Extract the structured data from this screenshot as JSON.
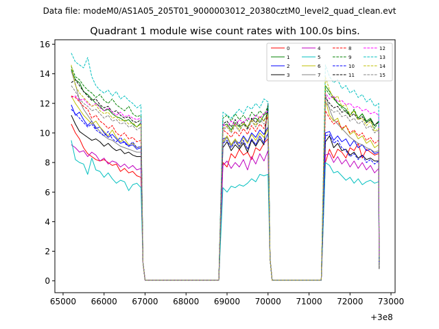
{
  "chart_data": {
    "type": "line",
    "suptitle": "Data file: modeM0/AS1A05_205T01_9000003012_20380cztM0_level2_quad_clean.evt",
    "title": "Quadrant 1 module wise count rates with 100.0s bins.",
    "xlabel": "",
    "ylabel": "",
    "x_offset_label": "+3e8",
    "xlim": [
      64800,
      73100
    ],
    "ylim": [
      -0.8,
      16.3
    ],
    "xticks": [
      65000,
      66000,
      67000,
      68000,
      69000,
      70000,
      71000,
      72000,
      73000
    ],
    "xtick_labels": [
      "65000",
      "66000",
      "67000",
      "68000",
      "69000",
      "70000",
      "71000",
      "72000",
      "73000"
    ],
    "yticks": [
      0,
      2,
      4,
      6,
      8,
      10,
      12,
      14,
      16
    ],
    "ytick_labels": [
      "0",
      "2",
      "4",
      "6",
      "8",
      "10",
      "12",
      "14",
      "16"
    ],
    "x_segments": [
      {
        "start": 65200,
        "end": 66900,
        "step": 100
      },
      {
        "start": 67000,
        "end": 68800,
        "step": 100
      },
      {
        "start": 68900,
        "end": 70000,
        "step": 100
      },
      {
        "start": 70100,
        "end": 71300,
        "step": 100
      },
      {
        "start": 71400,
        "end": 72700,
        "step": 100
      }
    ],
    "legend_position": "upper-right",
    "series": [
      {
        "name": "0",
        "color": "#ff0000",
        "dash": "solid",
        "seg1": [
          10.6,
          10.0,
          9.6,
          9.0,
          8.6,
          8.4,
          8.2,
          8.1,
          8.2,
          8.0,
          7.8,
          7.9,
          7.4,
          7.6,
          7.3,
          7.4,
          7.1,
          7.0
        ],
        "seg3": [
          8.0,
          7.7,
          8.6,
          8.3,
          8.9,
          8.5,
          8.7,
          8.2,
          9.0,
          8.8,
          9.3,
          9.6
        ],
        "seg5": [
          8.0,
          8.9,
          8.3,
          8.9,
          8.7,
          8.3,
          9.0,
          8.8,
          9.3,
          8.3,
          8.9,
          8.7,
          8.5,
          8.6
        ]
      },
      {
        "name": "1",
        "color": "#008000",
        "dash": "solid",
        "seg1": [
          14.3,
          13.6,
          13.4,
          12.8,
          12.6,
          12.3,
          12.0,
          11.8,
          11.5,
          11.6,
          11.3,
          11.1,
          11.0,
          10.8,
          10.9,
          10.6,
          10.4,
          10.7
        ],
        "seg3": [
          10.5,
          10.6,
          10.2,
          10.7,
          10.4,
          10.6,
          10.4,
          10.9,
          11.0,
          10.7,
          11.2,
          11.4
        ],
        "seg5": [
          13.2,
          12.8,
          12.4,
          12.0,
          11.8,
          11.6,
          11.2,
          11.5,
          11.0,
          11.3,
          10.8,
          11.0,
          10.5,
          10.8
        ]
      },
      {
        "name": "2",
        "color": "#0000ff",
        "dash": "solid",
        "seg1": [
          11.9,
          11.2,
          11.4,
          10.9,
          10.5,
          10.8,
          10.3,
          10.4,
          10.0,
          9.7,
          9.9,
          9.6,
          9.3,
          9.4,
          9.1,
          9.2,
          8.9,
          9.0
        ],
        "seg3": [
          9.6,
          9.7,
          9.2,
          9.5,
          9.3,
          9.8,
          9.4,
          10.0,
          9.7,
          10.2,
          9.9,
          10.4
        ],
        "seg5": [
          10.0,
          10.1,
          9.5,
          9.8,
          9.4,
          9.6,
          9.1,
          9.5,
          9.0,
          9.2,
          8.8,
          8.9,
          8.6,
          8.7
        ]
      },
      {
        "name": "3",
        "color": "#000000",
        "dash": "solid",
        "seg1": [
          11.2,
          10.6,
          10.1,
          9.9,
          9.7,
          9.5,
          9.6,
          9.4,
          9.1,
          9.3,
          9.0,
          8.8,
          8.9,
          8.6,
          8.7,
          8.5,
          8.4,
          8.4
        ],
        "seg3": [
          9.0,
          9.4,
          8.8,
          9.2,
          8.9,
          9.3,
          8.7,
          9.5,
          9.1,
          9.6,
          9.2,
          12.0
        ],
        "seg5": [
          9.4,
          9.8,
          9.0,
          9.3,
          8.8,
          8.9,
          8.5,
          8.7,
          8.3,
          8.5,
          8.2,
          8.3,
          8.1,
          8.1
        ]
      },
      {
        "name": "4",
        "color": "#bf00bf",
        "dash": "solid",
        "seg1": [
          9.2,
          9.0,
          8.7,
          8.8,
          8.4,
          8.7,
          8.5,
          8.1,
          8.3,
          7.9,
          8.1,
          8.0,
          7.7,
          7.9,
          7.6,
          7.8,
          7.5,
          7.6
        ],
        "seg3": [
          7.8,
          8.1,
          7.6,
          8.0,
          7.7,
          8.2,
          7.5,
          8.4,
          7.9,
          8.6,
          8.1,
          8.8
        ],
        "seg5": [
          8.5,
          8.6,
          8.0,
          8.4,
          7.9,
          8.2,
          7.7,
          8.1,
          7.6,
          8.0,
          7.5,
          7.8,
          7.3,
          7.6
        ]
      },
      {
        "name": "5",
        "color": "#00bfbf",
        "dash": "solid",
        "seg1": [
          9.5,
          8.2,
          8.0,
          7.9,
          7.2,
          8.3,
          7.5,
          7.4,
          7.0,
          7.3,
          6.9,
          6.6,
          6.8,
          6.7,
          6.1,
          6.5,
          6.6,
          6.3
        ],
        "seg3": [
          6.3,
          6.0,
          6.4,
          6.3,
          6.5,
          6.4,
          6.6,
          6.9,
          6.7,
          7.2,
          7.1,
          7.2
        ],
        "seg5": [
          8.0,
          7.8,
          7.3,
          7.4,
          7.1,
          6.8,
          7.0,
          6.6,
          6.9,
          6.5,
          6.7,
          6.8,
          6.6,
          6.7
        ]
      },
      {
        "name": "6",
        "color": "#bfbf00",
        "dash": "solid",
        "seg1": [
          12.5,
          12.0,
          11.6,
          11.2,
          10.9,
          10.6,
          10.8,
          10.4,
          10.1,
          9.8,
          10.2,
          9.7,
          9.4,
          9.6,
          9.2,
          9.3,
          9.0,
          9.1
        ],
        "seg3": [
          9.4,
          9.8,
          9.2,
          9.6,
          9.1,
          9.7,
          9.3,
          9.9,
          9.5,
          10.0,
          9.7,
          10.3
        ],
        "seg5": [
          12.2,
          11.2,
          10.8,
          11.0,
          10.2,
          10.5,
          9.9,
          10.1,
          9.6,
          9.8,
          9.3,
          9.5,
          9.0,
          9.2
        ]
      },
      {
        "name": "7",
        "color": "#808080",
        "dash": "solid",
        "seg1": [
          14.2,
          13.3,
          12.2,
          11.6,
          11.2,
          10.8,
          10.4,
          10.1,
          9.8,
          9.6,
          9.5,
          9.3,
          9.1,
          9.0,
          8.9,
          8.8,
          8.7,
          8.7
        ],
        "seg3": [
          9.3,
          9.7,
          9.1,
          9.5,
          9.0,
          9.4,
          8.9,
          9.6,
          9.2,
          9.8,
          9.3,
          10.0
        ],
        "seg5": [
          12.6,
          11.6,
          10.9,
          10.6,
          10.3,
          10.0,
          9.7,
          9.5,
          9.3,
          9.2,
          9.0,
          8.9,
          8.7,
          8.8
        ]
      },
      {
        "name": "8",
        "color": "#ff0000",
        "dash": "dashed",
        "seg1": [
          12.5,
          12.4,
          12.1,
          11.8,
          11.6,
          11.0,
          11.2,
          10.8,
          10.6,
          10.3,
          10.5,
          10.0,
          9.8,
          10.0,
          9.6,
          9.7,
          9.4,
          9.5
        ],
        "seg3": [
          10.2,
          10.0,
          9.7,
          10.1,
          9.8,
          10.3,
          9.9,
          10.5,
          10.1,
          10.6,
          10.3,
          11.2
        ],
        "seg5": [
          11.5,
          11.0,
          10.6,
          10.8,
          10.3,
          10.5,
          10.0,
          10.2,
          9.8,
          10.0,
          9.5,
          9.7,
          9.3,
          9.5
        ]
      },
      {
        "name": "9",
        "color": "#008000",
        "dash": "dashed",
        "seg1": [
          14.5,
          13.8,
          13.6,
          13.2,
          12.9,
          12.7,
          12.4,
          12.6,
          12.2,
          12.0,
          12.3,
          11.9,
          11.7,
          11.5,
          11.8,
          11.3,
          11.1,
          11.2
        ],
        "seg3": [
          11.0,
          11.2,
          10.8,
          11.3,
          10.9,
          11.2,
          10.8,
          11.4,
          11.1,
          11.5,
          11.2,
          11.8
        ],
        "seg5": [
          13.0,
          12.6,
          12.3,
          12.0,
          11.7,
          11.4,
          11.2,
          11.6,
          11.0,
          11.3,
          10.7,
          10.9,
          10.3,
          10.8
        ]
      },
      {
        "name": "10",
        "color": "#0000ff",
        "dash": "dashed",
        "seg1": [
          11.6,
          11.3,
          11.0,
          10.7,
          10.4,
          10.6,
          10.2,
          10.0,
          9.8,
          10.1,
          9.6,
          9.4,
          9.7,
          9.3,
          9.1,
          9.4,
          9.0,
          9.1
        ],
        "seg3": [
          9.3,
          9.5,
          9.0,
          9.4,
          9.1,
          9.5,
          8.9,
          9.6,
          9.2,
          9.8,
          9.3,
          10.0
        ],
        "seg5": [
          9.8,
          9.9,
          9.3,
          9.5,
          9.0,
          8.8,
          8.4,
          8.6,
          8.2,
          8.5,
          8.0,
          8.2,
          7.9,
          8.1
        ]
      },
      {
        "name": "11",
        "color": "#000000",
        "dash": "dashed",
        "seg1": [
          13.4,
          13.6,
          13.2,
          12.8,
          12.5,
          12.2,
          12.3,
          11.9,
          11.7,
          11.8,
          11.4,
          11.5,
          11.2,
          11.0,
          11.1,
          10.8,
          10.7,
          10.9
        ],
        "seg3": [
          10.6,
          10.8,
          10.4,
          10.9,
          10.5,
          10.8,
          10.3,
          11.0,
          10.7,
          11.1,
          10.8,
          11.4
        ],
        "seg5": [
          12.4,
          12.0,
          11.7,
          11.8,
          11.4,
          11.5,
          11.1,
          11.3,
          10.9,
          11.1,
          10.7,
          10.9,
          10.5,
          10.8
        ]
      },
      {
        "name": "12",
        "color": "#ff00ff",
        "dash": "dashed",
        "seg1": [
          12.4,
          12.5,
          12.2,
          12.3,
          12.0,
          11.8,
          12.0,
          11.7,
          11.5,
          11.7,
          11.4,
          11.2,
          11.4,
          11.1,
          11.2,
          11.0,
          10.9,
          11.0
        ],
        "seg3": [
          10.6,
          10.4,
          10.8,
          10.5,
          10.9,
          10.7,
          11.0,
          10.8,
          11.2,
          11.0,
          11.3,
          11.5
        ],
        "seg5": [
          12.7,
          12.3,
          12.5,
          12.1,
          12.2,
          11.9,
          12.0,
          11.7,
          11.8,
          11.5,
          11.6,
          11.3,
          11.4,
          11.2
        ]
      },
      {
        "name": "13",
        "color": "#00bfbf",
        "dash": "dashed",
        "seg1": [
          15.4,
          14.8,
          14.6,
          14.4,
          15.1,
          13.8,
          13.2,
          12.9,
          12.7,
          12.9,
          12.5,
          12.8,
          12.3,
          12.5,
          12.2,
          12.0,
          11.7,
          11.9
        ],
        "seg3": [
          11.4,
          11.2,
          11.0,
          11.3,
          11.6,
          11.3,
          11.8,
          11.6,
          12.0,
          11.7,
          12.3,
          12.1
        ],
        "seg5": [
          14.6,
          13.8,
          13.4,
          13.6,
          13.0,
          13.2,
          12.7,
          12.9,
          12.4,
          12.6,
          12.1,
          12.3,
          11.8,
          12.0
        ]
      },
      {
        "name": "14",
        "color": "#bfbf00",
        "dash": "dashed",
        "seg1": [
          14.6,
          13.2,
          12.7,
          12.4,
          12.1,
          11.8,
          11.9,
          11.5,
          11.3,
          11.4,
          11.0,
          11.1,
          10.8,
          10.9,
          10.6,
          10.7,
          10.4,
          10.6
        ],
        "seg3": [
          10.3,
          10.5,
          10.1,
          10.6,
          10.2,
          10.7,
          10.4,
          10.9,
          10.5,
          11.1,
          10.8,
          11.3
        ],
        "seg5": [
          13.8,
          12.9,
          12.3,
          12.5,
          11.8,
          11.9,
          11.2,
          11.5,
          10.9,
          11.0,
          10.5,
          10.8,
          10.1,
          10.3
        ]
      },
      {
        "name": "15",
        "color": "#808080",
        "dash": "dashed",
        "seg1": [
          13.2,
          12.8,
          12.3,
          12.0,
          11.8,
          11.5,
          11.6,
          11.3,
          11.0,
          11.2,
          10.8,
          10.9,
          10.6,
          10.7,
          10.4,
          10.5,
          10.2,
          10.4
        ],
        "seg3": [
          10.2,
          10.4,
          10.0,
          10.5,
          10.1,
          10.6,
          10.2,
          10.8,
          10.4,
          10.9,
          10.6,
          11.0
        ],
        "seg5": [
          12.1,
          11.7,
          11.4,
          11.5,
          11.1,
          11.2,
          10.8,
          11.0,
          10.6,
          10.8,
          10.3,
          10.5,
          10.0,
          10.2
        ]
      }
    ],
    "segment_edge_values": {
      "drop_after_seg1": [
        1.2,
        0.05
      ],
      "rise_before_seg3": 0.0,
      "drop_after_seg3": [
        1.5,
        0.05
      ],
      "rise_before_seg5": 0.0,
      "seg5_last_low": [
        1.6,
        1.4,
        1.2,
        0.8
      ]
    }
  }
}
